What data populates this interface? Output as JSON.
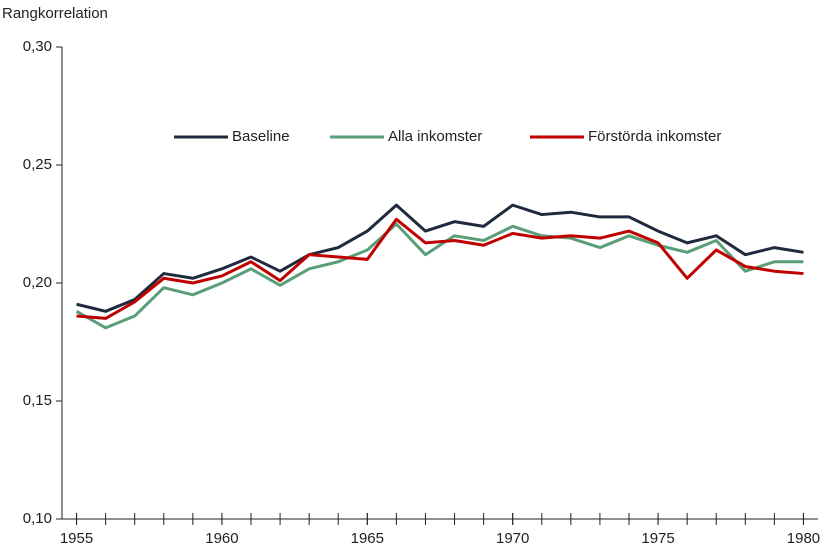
{
  "chart_data": {
    "type": "line",
    "y_axis_label": "Rangkorrelation",
    "x": [
      1955,
      1956,
      1957,
      1958,
      1959,
      1960,
      1961,
      1962,
      1963,
      1964,
      1965,
      1966,
      1967,
      1968,
      1969,
      1970,
      1971,
      1972,
      1973,
      1974,
      1975,
      1976,
      1977,
      1978,
      1979,
      1980
    ],
    "series": [
      {
        "name": "Baseline",
        "color": "#1f2a3c",
        "values": [
          0.191,
          0.188,
          0.193,
          0.204,
          0.202,
          0.206,
          0.211,
          0.205,
          0.212,
          0.215,
          0.222,
          0.233,
          0.222,
          0.226,
          0.224,
          0.233,
          0.229,
          0.23,
          0.228,
          0.228,
          0.222,
          0.217,
          0.22,
          0.212,
          0.215,
          0.213
        ]
      },
      {
        "name": "Alla inkomster",
        "color": "#5a9e78",
        "values": [
          0.188,
          0.181,
          0.186,
          0.198,
          0.195,
          0.2,
          0.206,
          0.199,
          0.206,
          0.209,
          0.214,
          0.225,
          0.212,
          0.22,
          0.218,
          0.224,
          0.22,
          0.219,
          0.215,
          0.22,
          0.216,
          0.213,
          0.218,
          0.205,
          0.209,
          0.209
        ]
      },
      {
        "name": "Förstörda inkomster",
        "color": "#c00000",
        "values": [
          0.186,
          0.185,
          0.192,
          0.202,
          0.2,
          0.203,
          0.209,
          0.201,
          0.212,
          0.211,
          0.21,
          0.227,
          0.217,
          0.218,
          0.216,
          0.221,
          0.219,
          0.22,
          0.219,
          0.222,
          0.217,
          0.202,
          0.214,
          0.207,
          0.205,
          0.204
        ]
      }
    ],
    "xlim": [
      1954.5,
      1980.5
    ],
    "xticks": [
      1955,
      1960,
      1965,
      1970,
      1975,
      1980
    ],
    "ylim": [
      0.1,
      0.3
    ],
    "yticks": [
      {
        "value": 0.1,
        "label": "0,10"
      },
      {
        "value": 0.15,
        "label": "0,15"
      },
      {
        "value": 0.2,
        "label": "0,20"
      },
      {
        "value": 0.25,
        "label": "0,25"
      },
      {
        "value": 0.3,
        "label": "0,30"
      }
    ],
    "legend": "top-center"
  }
}
